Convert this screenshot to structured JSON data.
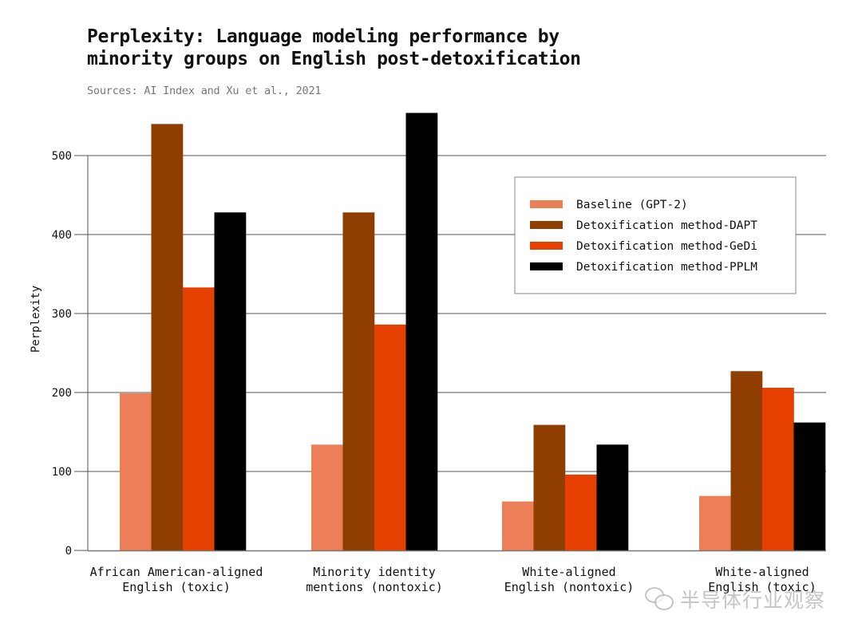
{
  "chart_data": {
    "type": "bar",
    "title": "Perplexity: Language modeling performance by minority groups on English post-detoxification",
    "title_lines": [
      "Perplexity: Language modeling performance by",
      "minority groups on English post-detoxification"
    ],
    "subtitle": "Sources: AI Index and Xu et al., 2021",
    "xlabel": "",
    "ylabel": "Perplexity",
    "ylim": [
      0,
      560
    ],
    "yticks": [
      0,
      100,
      200,
      300,
      400,
      500
    ],
    "grid": true,
    "legend_position": "top-right",
    "categories": [
      [
        "African American-aligned",
        "English (toxic)"
      ],
      [
        "Minority identity",
        "mentions (nontoxic)"
      ],
      [
        "White-aligned",
        "English (nontoxic)"
      ],
      [
        "White-aligned",
        "English (toxic)"
      ]
    ],
    "series": [
      {
        "name": "Baseline (GPT-2)",
        "color": "#EC7F57",
        "values": [
          199,
          134,
          62,
          69
        ]
      },
      {
        "name": "Detoxification method-DAPT",
        "color": "#8F3D00",
        "values": [
          540,
          428,
          159,
          227
        ]
      },
      {
        "name": "Detoxification method-GeDi",
        "color": "#E54000",
        "values": [
          333,
          286,
          96,
          206
        ]
      },
      {
        "name": "Detoxification method-PPLM",
        "color": "#000000",
        "values": [
          428,
          554,
          134,
          162
        ]
      }
    ]
  },
  "watermark": {
    "text": "半导体行业观察",
    "icon": "wechat-icon"
  }
}
